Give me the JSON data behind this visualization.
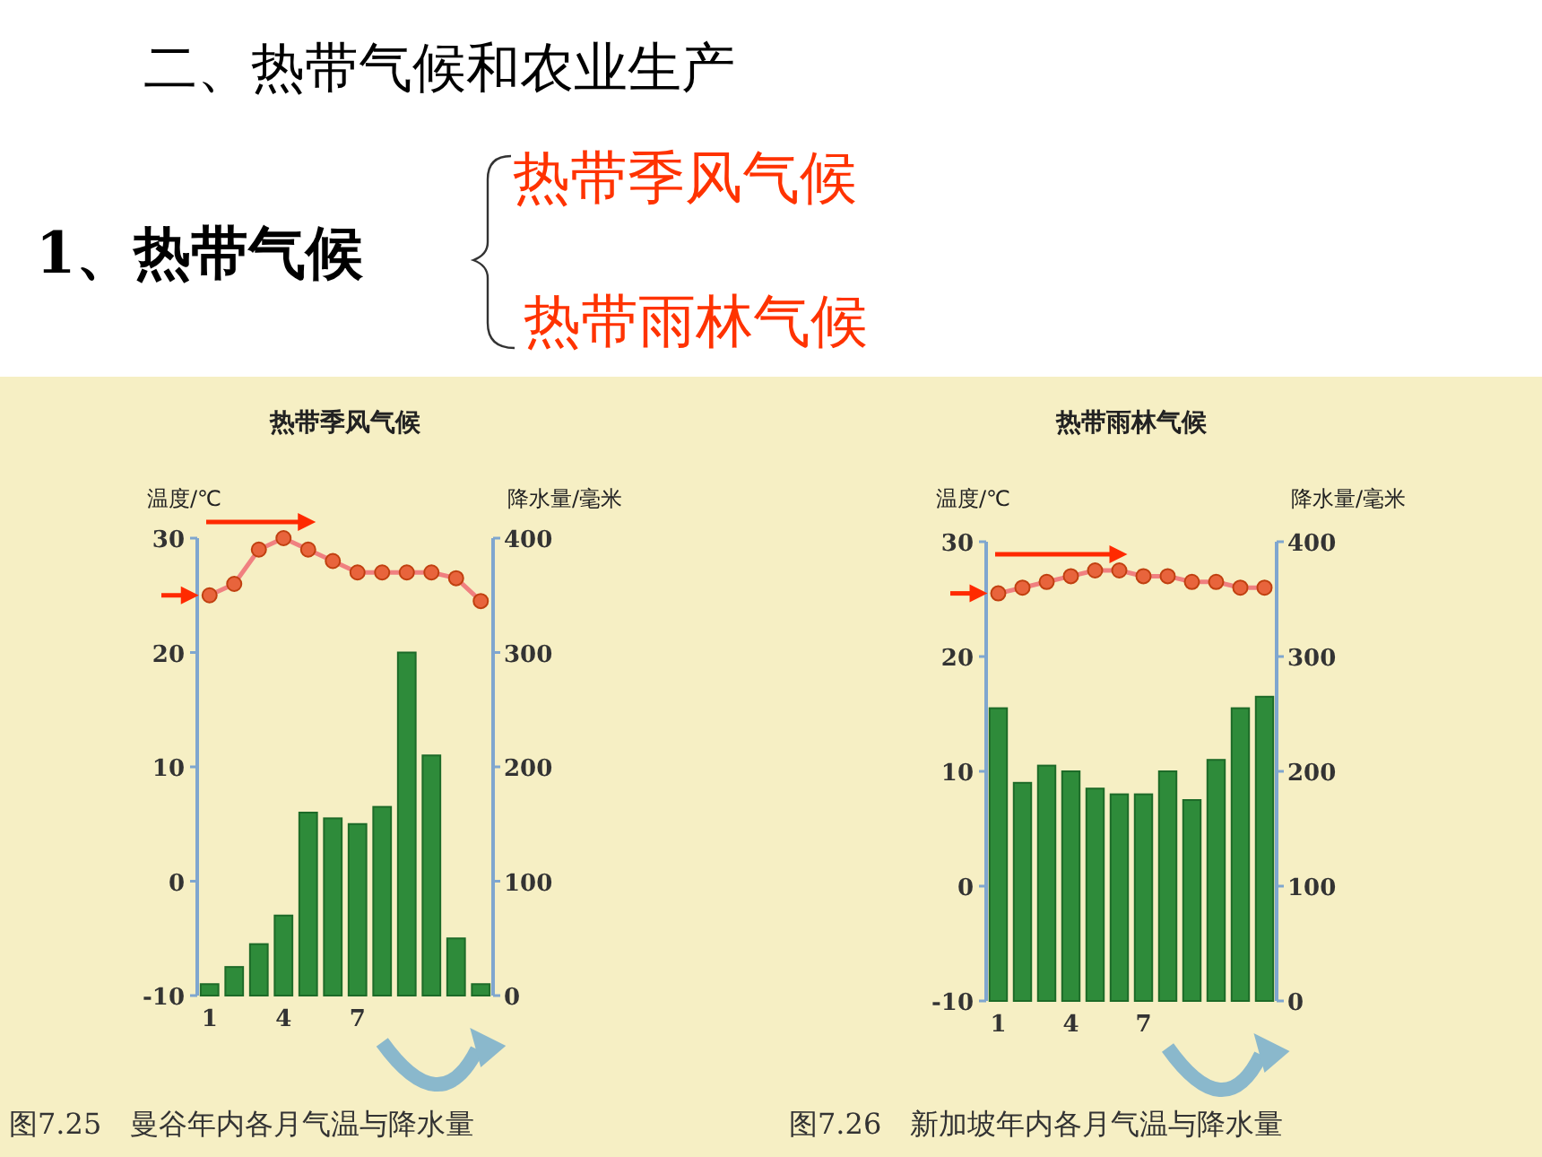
{
  "chart_data": [
    {
      "type": "other",
      "title": "二、热带气候和农业生产",
      "annotations": [
        "1、热带气候",
        "热带季风气候",
        "热带雨林气候"
      ]
    },
    {
      "type": "bar",
      "title": "热带季风气候",
      "ylabel": "温度/℃",
      "y2label": "降水量/毫米",
      "categories": [
        "1",
        null,
        null,
        "4",
        null,
        null,
        "7",
        null,
        null,
        null,
        null,
        null
      ],
      "series": [
        {
          "type": "bar",
          "axis": "y2",
          "color": "#2e8b3a",
          "values": [
            10,
            25,
            45,
            70,
            160,
            155,
            150,
            165,
            300,
            210,
            50,
            10
          ]
        },
        {
          "type": "line",
          "axis": "y",
          "color": "#e8643c",
          "marker": "circle",
          "values": [
            25,
            26,
            29,
            30,
            29,
            28,
            27,
            27,
            27,
            27,
            26.5,
            24.5
          ]
        }
      ],
      "ylim": [
        -10,
        30
      ],
      "yticks": [
        -10,
        0,
        10,
        20,
        30
      ],
      "y2lim": [
        0,
        400
      ],
      "y2ticks": [
        0,
        100,
        200,
        300,
        400
      ],
      "grid": false,
      "annotations": [
        "图7.25　曼谷年内各月气温与降水量"
      ]
    },
    {
      "type": "bar",
      "title": "热带雨林气候",
      "ylabel": "温度/℃",
      "y2label": "降水量/毫米",
      "categories": [
        "1",
        null,
        null,
        "4",
        null,
        null,
        "7",
        null,
        null,
        null,
        null,
        null
      ],
      "series": [
        {
          "type": "bar",
          "axis": "y2",
          "color": "#2e8b3a",
          "values": [
            255,
            190,
            205,
            200,
            185,
            180,
            180,
            200,
            175,
            210,
            255,
            265
          ]
        },
        {
          "type": "line",
          "axis": "y",
          "color": "#e8643c",
          "marker": "circle",
          "values": [
            25.5,
            26,
            26.5,
            27,
            27.5,
            27.5,
            27,
            27,
            26.5,
            26.5,
            26,
            26
          ]
        }
      ],
      "ylim": [
        -10,
        30
      ],
      "yticks": [
        -10,
        0,
        10,
        20,
        30
      ],
      "y2lim": [
        0,
        400
      ],
      "y2ticks": [
        0,
        100,
        200,
        300,
        400
      ],
      "grid": false,
      "annotations": [
        "图7.26　新加坡年内各月气温与降水量"
      ]
    }
  ]
}
